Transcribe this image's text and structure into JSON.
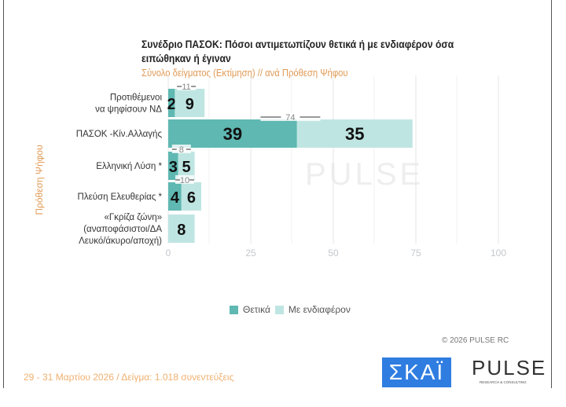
{
  "chart_data": {
    "type": "bar",
    "stacked": true,
    "orientation": "horizontal",
    "title": "Συνέδριο ΠΑΣΟΚ: Πόσοι αντιμετωπίζουν θετικά ή με ενδιαφέρον όσα ειπώθηκαν ή έγιναν",
    "subtitle": "Σύνολο δείγματος  (Εκτίμηση) // ανά Πρόθεση  Ψήφου",
    "ylabel": "Πρόθεση  Ψήφου",
    "categories": [
      [
        "Προτιθέμενοι",
        "να ψηφίσουν ΝΔ"
      ],
      [
        "ΠΑΣΟΚ -Κίν.Αλλαγής"
      ],
      [
        "Ελληνική Λύση *"
      ],
      [
        "Πλεύση Ελευθερίας *"
      ],
      [
        "«Γκρίζα ζώνη»",
        "(αναποφάσιστοι/ΔΑ",
        "Λευκό/άκυρο/αποχή)"
      ]
    ],
    "series": [
      {
        "name": "Θετικά",
        "color": "#5fb8b2",
        "values": [
          2,
          39,
          3,
          4,
          null
        ]
      },
      {
        "name": "Με ενδιαφέρον",
        "color": "#bfe5e2",
        "values": [
          9,
          35,
          5,
          6,
          8
        ]
      }
    ],
    "totals": [
      11,
      74,
      8,
      10,
      null
    ],
    "xlim": [
      0,
      100
    ],
    "xticks": [
      "0",
      "25",
      "50",
      "75",
      "100"
    ],
    "grid": true,
    "legend": "bottom"
  },
  "copyright": "©  2026  PULSE RC",
  "footer": "29 - 31  Μαρτίου 2026  /  Δείγμα:  1.018 συνεντεύξεις",
  "logos": {
    "skai": "ΣΚΑΪ",
    "pulse": "PULSE",
    "pulse_sub": "RESEARCH & CONSULTING"
  }
}
